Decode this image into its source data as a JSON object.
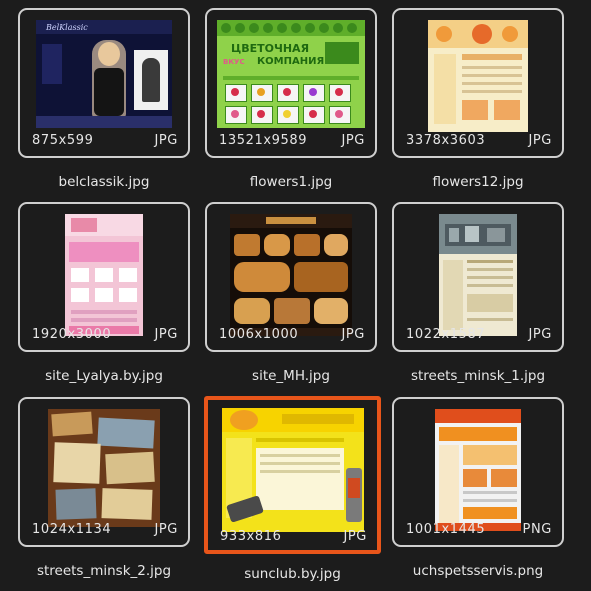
{
  "thumbnails": [
    {
      "name": "belclassik.jpg",
      "dims": "875x599",
      "type": "JPG",
      "selected": false
    },
    {
      "name": "flowers1.jpg",
      "dims": "13521x9589",
      "type": "JPG",
      "selected": false
    },
    {
      "name": "flowers12.jpg",
      "dims": "3378x3603",
      "type": "JPG",
      "selected": false
    },
    {
      "name": "site_Lyalya.by.jpg",
      "dims": "1920x3000",
      "type": "JPG",
      "selected": false
    },
    {
      "name": "site_MH.jpg",
      "dims": "1006x1000",
      "type": "JPG",
      "selected": false
    },
    {
      "name": "streets_minsk_1.jpg",
      "dims": "1022x1587",
      "type": "JPG",
      "selected": false
    },
    {
      "name": "streets_minsk_2.jpg",
      "dims": "1024x1134",
      "type": "JPG",
      "selected": false
    },
    {
      "name": "sunclub.by.jpg",
      "dims": "933x816",
      "type": "JPG",
      "selected": true
    },
    {
      "name": "uchspetsservis.png",
      "dims": "1001x1445",
      "type": "PNG",
      "selected": false
    }
  ],
  "thumb_text": {
    "belclassik_logo": "BelKlassic",
    "flowers_banner_line1": "ЦВЕТОЧНАЯ",
    "flowers_banner_line2": "КОМПАНИЯ",
    "flowers_banner_side": "ВКУС"
  },
  "colors": {
    "background": "#1c1c1c",
    "card_border": "#cfcfcf",
    "selected_border": "#e8551a",
    "text": "#e6e6e6"
  }
}
